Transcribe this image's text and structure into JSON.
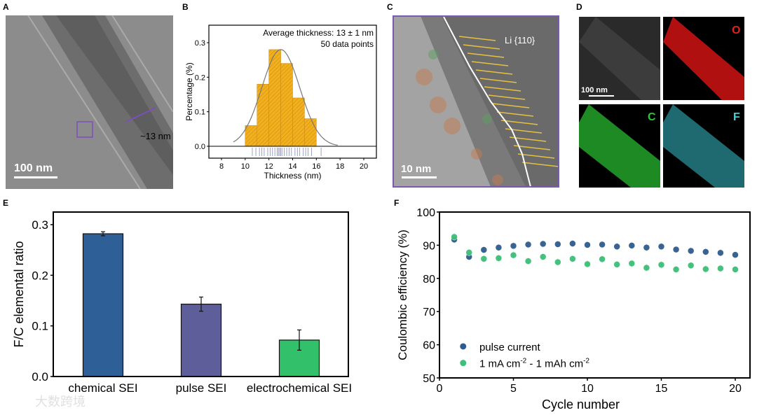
{
  "panels": {
    "A": {
      "label": "A",
      "scale_bar": "100 nm",
      "annotation": "~13 nm"
    },
    "C": {
      "label": "C",
      "scale_bar": "10 nm",
      "annotation": "Li {110}"
    },
    "D": {
      "label": "D",
      "scale_bar": "100 nm",
      "maps": [
        "O",
        "C",
        "F"
      ],
      "map_colors": [
        "#e0201a",
        "#27c93c",
        "#3fd4d4"
      ]
    }
  },
  "watermark": "大数跨境",
  "chart_data": [
    {
      "panel": "B",
      "type": "bar",
      "title": "",
      "xlabel": "Thickness (nm)",
      "ylabel": "Percentage (%)",
      "annotations": [
        "Average thickness: 13 ± 1 nm",
        "50 data points"
      ],
      "bin_edges": [
        10,
        11,
        12,
        13,
        14,
        15,
        16
      ],
      "values": [
        0.06,
        0.18,
        0.28,
        0.24,
        0.14,
        0.08
      ],
      "fit": {
        "type": "gaussian",
        "mean": 13,
        "peak": 0.28,
        "sigma": 1.6
      },
      "xlim": [
        7,
        21
      ],
      "ylim": [
        -0.035,
        0.35
      ],
      "xticks": [
        "8",
        "10",
        "12",
        "14",
        "16",
        "18",
        "20"
      ],
      "yticks": [
        "0.0",
        "0.1",
        "0.2",
        "0.3"
      ],
      "color": "#f2b01e"
    },
    {
      "panel": "E",
      "type": "bar",
      "xlabel": "",
      "ylabel": "F/C elemental ratio",
      "categories": [
        "chemical SEI",
        "pulse SEI",
        "electrochemical SEI"
      ],
      "values": [
        0.282,
        0.143,
        0.072
      ],
      "errors": [
        0.004,
        0.014,
        0.02
      ],
      "colors": [
        "#2e5f96",
        "#5e5e9a",
        "#33c06a"
      ],
      "ylim": [
        0,
        0.325
      ],
      "yticks": [
        "0.0",
        "0.1",
        "0.2",
        "0.3"
      ]
    },
    {
      "panel": "F",
      "type": "scatter",
      "xlabel": "Cycle number",
      "ylabel": "Coulombic efficiency (%)",
      "xlim": [
        0,
        21
      ],
      "ylim": [
        50,
        100
      ],
      "xticks": [
        "0",
        "5",
        "10",
        "15",
        "20"
      ],
      "yticks": [
        "50",
        "60",
        "70",
        "80",
        "90",
        "100"
      ],
      "x": [
        1,
        2,
        3,
        4,
        5,
        6,
        7,
        8,
        9,
        10,
        11,
        12,
        13,
        14,
        15,
        16,
        17,
        18,
        19,
        20
      ],
      "series": [
        {
          "name": "pulse current",
          "color": "#2f5c8f",
          "values": [
            91.7,
            86.5,
            88.6,
            89.3,
            89.8,
            90.2,
            90.4,
            90.3,
            90.5,
            90.1,
            90.2,
            89.6,
            89.9,
            89.3,
            89.6,
            88.7,
            88.3,
            88.0,
            87.7,
            87.1
          ]
        },
        {
          "name": "1 mA cm-2 - 1 mAh cm-2",
          "color": "#3cbf78",
          "values": [
            92.5,
            87.8,
            85.9,
            86.1,
            87.0,
            85.2,
            86.5,
            84.9,
            85.9,
            84.3,
            85.8,
            84.2,
            84.5,
            83.2,
            84.1,
            82.7,
            83.9,
            82.8,
            83.0,
            82.7
          ]
        }
      ],
      "legend": "bottom-left"
    }
  ]
}
